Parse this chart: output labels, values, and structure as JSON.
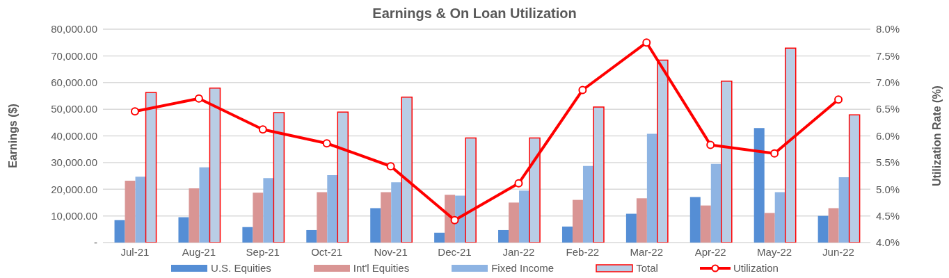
{
  "chart_data": {
    "type": "bar",
    "title": "Earnings & On Loan Utilization",
    "ylabel": "Earnings ($)",
    "y2label": "Utilization Rate (%)",
    "categories": [
      "Jul-21",
      "Aug-21",
      "Sep-21",
      "Oct-21",
      "Nov-21",
      "Dec-21",
      "Jan-22",
      "Feb-22",
      "Mar-22",
      "Apr-22",
      "May-22",
      "Jun-22"
    ],
    "series": [
      {
        "name": "U.S. Equities",
        "color": "#558ed5",
        "values": [
          8400,
          9500,
          5800,
          4700,
          12900,
          3700,
          4700,
          6000,
          10800,
          17100,
          42900,
          10000
        ]
      },
      {
        "name": "Int'l Equities",
        "color": "#d99594",
        "values": [
          23200,
          20300,
          18700,
          18900,
          18900,
          17900,
          15000,
          16000,
          16600,
          13900,
          11100,
          12900
        ]
      },
      {
        "name": "Fixed Income",
        "color": "#8eb4e3",
        "values": [
          24700,
          28200,
          24200,
          25300,
          22600,
          17600,
          19500,
          28700,
          40800,
          29500,
          18900,
          24500
        ]
      },
      {
        "name": "Total",
        "color": "#b9cde5",
        "values": [
          56300,
          57900,
          48700,
          48900,
          54500,
          39200,
          39200,
          50800,
          68400,
          60500,
          72900,
          47900
        ]
      },
      {
        "name": "Utilization",
        "type": "line",
        "axis": "y2",
        "color": "#ff0000",
        "marker": "circle",
        "values": [
          6.46,
          6.7,
          6.12,
          5.86,
          5.43,
          4.42,
          5.11,
          6.86,
          7.75,
          5.83,
          5.67,
          6.68
        ]
      }
    ],
    "ylim": [
      0,
      80000
    ],
    "yticks": [
      {
        "value": 0,
        "label": "-"
      },
      {
        "value": 10000,
        "label": "10,000.00"
      },
      {
        "value": 20000,
        "label": "20,000.00"
      },
      {
        "value": 30000,
        "label": "30,000.00"
      },
      {
        "value": 40000,
        "label": "40,000.00"
      },
      {
        "value": 50000,
        "label": "50,000.00"
      },
      {
        "value": 60000,
        "label": "60,000.00"
      },
      {
        "value": 70000,
        "label": "70,000.00"
      },
      {
        "value": 80000,
        "label": "80,000.00"
      }
    ],
    "y2lim": [
      4,
      8
    ],
    "y2ticks": [
      {
        "value": 4,
        "label": "4.0%"
      },
      {
        "value": 4.5,
        "label": "4.5%"
      },
      {
        "value": 5,
        "label": "5.0%"
      },
      {
        "value": 5.5,
        "label": "5.5%"
      },
      {
        "value": 6,
        "label": "6.0%"
      },
      {
        "value": 6.5,
        "label": "6.5%"
      },
      {
        "value": 7,
        "label": "7.0%"
      },
      {
        "value": 7.5,
        "label": "7.5%"
      },
      {
        "value": 8,
        "label": "8.0%"
      }
    ],
    "grid": "y",
    "legend": "bottom"
  }
}
